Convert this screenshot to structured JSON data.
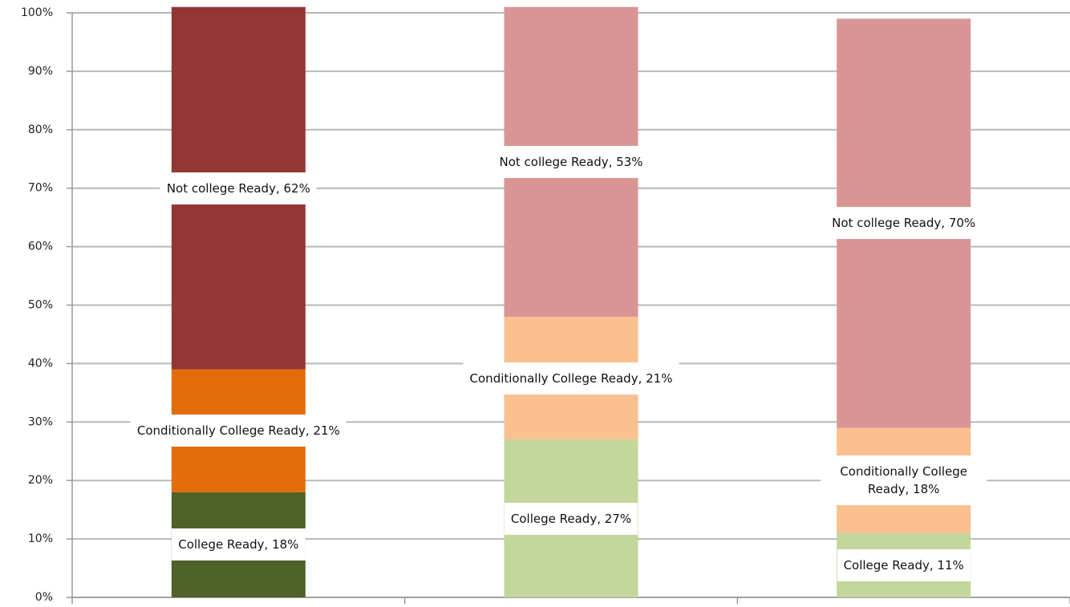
{
  "chart_data": {
    "type": "stacked_bar",
    "categories": [
      null,
      null,
      null
    ],
    "series": [
      {
        "name": "College Ready",
        "colors": [
          "#4f6228",
          "#c3d69b",
          "#c3d69b"
        ],
        "values": [
          18,
          27,
          11
        ],
        "value_labels": [
          "College Ready, 18%",
          "College Ready, 27%",
          "College Ready, 11%"
        ]
      },
      {
        "name": "Conditionally College Ready",
        "colors": [
          "#e46c0a",
          "#fac090",
          "#fac090"
        ],
        "values": [
          21,
          21,
          18
        ],
        "value_labels": [
          "Conditionally College Ready, 21%",
          "Conditionally College Ready, 21%",
          "Conditionally College Ready, 18%"
        ]
      },
      {
        "name": "Not college Ready",
        "colors": [
          "#943634",
          "#d99594",
          "#d99594"
        ],
        "values": [
          62,
          53,
          70
        ],
        "value_labels": [
          "Not college Ready, 62%",
          "Not college Ready, 53%",
          "Not college Ready, 70%"
        ]
      }
    ],
    "ylim": [
      0,
      100
    ],
    "yticks": [
      {
        "value": 0,
        "label": "0%"
      },
      {
        "value": 10,
        "label": "10%"
      },
      {
        "value": 20,
        "label": "20%"
      },
      {
        "value": 30,
        "label": "30%"
      },
      {
        "value": 40,
        "label": "40%"
      },
      {
        "value": 50,
        "label": "50%"
      },
      {
        "value": 60,
        "label": "60%"
      },
      {
        "value": 70,
        "label": "70%"
      },
      {
        "value": 80,
        "label": "80%"
      },
      {
        "value": 90,
        "label": "90%"
      },
      {
        "value": 100,
        "label": "100%"
      }
    ],
    "grid": true
  }
}
